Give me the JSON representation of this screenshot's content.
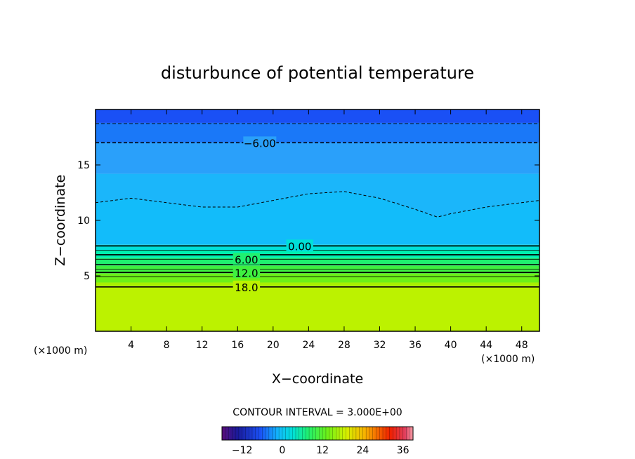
{
  "chart_data": {
    "type": "heatmap",
    "title": "disturbunce of potential temperature",
    "xlabel": "X−coordinate",
    "ylabel": "Z−coordinate",
    "x_unit_left": "(×1000 m)",
    "x_unit_right": "(×1000 m)",
    "xlim": [
      0,
      50
    ],
    "ylim": [
      0,
      20
    ],
    "x_ticks": [
      4,
      8,
      12,
      16,
      20,
      24,
      28,
      32,
      36,
      40,
      44,
      48
    ],
    "y_ticks": [
      5,
      10,
      15
    ],
    "y_tick_labels": [
      "5",
      "10",
      "15"
    ],
    "contour_interval_text": "CONTOUR INTERVAL = 3.000E+00",
    "contour_labels": [
      {
        "text": "−6.00",
        "x": 18.5,
        "z": 17.0
      },
      {
        "text": "0.00",
        "x": 23.0,
        "z": 7.7
      },
      {
        "text": "6.00",
        "x": 17.0,
        "z": 6.5
      },
      {
        "text": "12.0",
        "x": 17.0,
        "z": 5.3
      },
      {
        "text": "18.0",
        "x": 17.0,
        "z": 4.0
      }
    ],
    "colorbar": {
      "range": [
        -18,
        39
      ],
      "tick_values": [
        -12,
        0,
        12,
        24,
        36
      ],
      "tick_labels": [
        "−12",
        "0",
        "12",
        "24",
        "36"
      ]
    },
    "color_layers": [
      {
        "z_top": 20.0,
        "color": "#1a50f5"
      },
      {
        "z_top": 18.8,
        "color": "#1a78f8"
      },
      {
        "z_top": 17.0,
        "color": "#2aa0fa"
      },
      {
        "z_top": 14.2,
        "color": "#12bcfa"
      },
      {
        "z_top": 7.8,
        "color": "#00e0d8"
      },
      {
        "z_top": 7.3,
        "color": "#00f0b0"
      },
      {
        "z_top": 6.6,
        "color": "#20f070"
      },
      {
        "z_top": 5.9,
        "color": "#3ef040"
      },
      {
        "z_top": 5.2,
        "color": "#6cf018"
      },
      {
        "z_top": 4.4,
        "color": "#a6f000"
      },
      {
        "z_top": 4.1,
        "color": "#bcf200"
      }
    ],
    "contours": [
      {
        "z": 18.7,
        "style": "dashed"
      },
      {
        "z": 17.0,
        "style": "dashed"
      },
      {
        "z": 7.7,
        "style": "solid",
        "weight": "thick"
      },
      {
        "z": 7.3,
        "style": "solid",
        "weight": "thin"
      },
      {
        "z": 6.9,
        "style": "solid",
        "weight": "thick"
      },
      {
        "z": 6.5,
        "style": "solid",
        "weight": "thin"
      },
      {
        "z": 6.0,
        "style": "solid",
        "weight": "thick"
      },
      {
        "z": 5.6,
        "style": "solid",
        "weight": "thin"
      },
      {
        "z": 5.3,
        "style": "solid",
        "weight": "thick"
      },
      {
        "z": 4.9,
        "style": "solid",
        "weight": "thin"
      },
      {
        "z": 4.0,
        "style": "solid",
        "weight": "thick"
      }
    ],
    "wavy_contour": {
      "x": [
        0,
        4,
        8,
        12,
        16,
        20,
        24,
        28,
        32,
        36,
        38.5,
        40,
        44,
        48,
        50
      ],
      "z": [
        11.6,
        12.0,
        11.6,
        11.2,
        11.2,
        11.8,
        12.4,
        12.6,
        12.0,
        11.0,
        10.3,
        10.6,
        11.2,
        11.6,
        11.8
      ]
    },
    "grid": false
  }
}
